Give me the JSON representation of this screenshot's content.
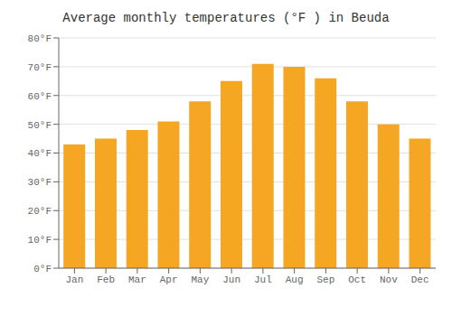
{
  "chart_data": {
    "type": "bar",
    "title": "Average monthly temperatures (°F ) in Beuda",
    "categories": [
      "Jan",
      "Feb",
      "Mar",
      "Apr",
      "May",
      "Jun",
      "Jul",
      "Aug",
      "Sep",
      "Oct",
      "Nov",
      "Dec"
    ],
    "values": [
      43,
      45,
      48,
      51,
      58,
      65,
      71,
      70,
      66,
      58,
      50,
      45
    ],
    "color": "#F5A623",
    "ylim": [
      0,
      80
    ],
    "yticks": [
      {
        "value": 0,
        "label": "0°F"
      },
      {
        "value": 10,
        "label": "10°F"
      },
      {
        "value": 20,
        "label": "20°F"
      },
      {
        "value": 30,
        "label": "30°F"
      },
      {
        "value": 40,
        "label": "40°F"
      },
      {
        "value": 50,
        "label": "50°F"
      },
      {
        "value": 60,
        "label": "60°F"
      },
      {
        "value": 70,
        "label": "70°F"
      },
      {
        "value": 80,
        "label": "80°F"
      }
    ],
    "grid": true
  }
}
